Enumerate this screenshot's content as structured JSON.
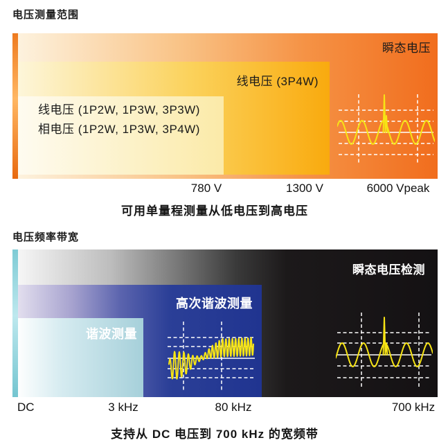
{
  "colors": {
    "orange_strong": "#f16d1d",
    "amber": "#f9aa0e",
    "pale_yellow": "#fbeaa8",
    "cyan_strip": "#7ecbd5",
    "royal_blue": "#24388f",
    "pale_blue": "#a6d0da",
    "black_band": "#141113",
    "trace_yellow": "#f7e414",
    "text_dark": "#1a1a1a",
    "text_light": "#ffffff"
  },
  "voltage_range": {
    "title": "电压测量范围",
    "bars": {
      "transient": {
        "label": "瞬态电压"
      },
      "line_3p4w": {
        "label": "线电压 (3P4W)"
      },
      "line_multi": {
        "label": "线电压 (1P2W, 1P3W, 3P3W)"
      },
      "phase_multi": {
        "label": "相电压 (1P2W, 1P3W, 3P4W)"
      }
    },
    "ticks": [
      "780 V",
      "1300 V",
      "6000 Vpeak"
    ],
    "caption": "可用单量程测量从低电压到高电压",
    "waveform": "sine-with-transient-spike"
  },
  "bandwidth": {
    "title": "电压频率带宽",
    "bars": {
      "transient_detect": {
        "label": "瞬态电压检测"
      },
      "high_harmonic": {
        "label": "高次谐波测量"
      },
      "harmonic": {
        "label": "谐波测量"
      }
    },
    "ticks": [
      "DC",
      "3 kHz",
      "80 kHz",
      "700 kHz"
    ],
    "caption": "支持从 DC 电压到 700 kHz 的宽频带",
    "waveforms": [
      "harmonic-sweep",
      "sine-with-transient-spike"
    ]
  }
}
